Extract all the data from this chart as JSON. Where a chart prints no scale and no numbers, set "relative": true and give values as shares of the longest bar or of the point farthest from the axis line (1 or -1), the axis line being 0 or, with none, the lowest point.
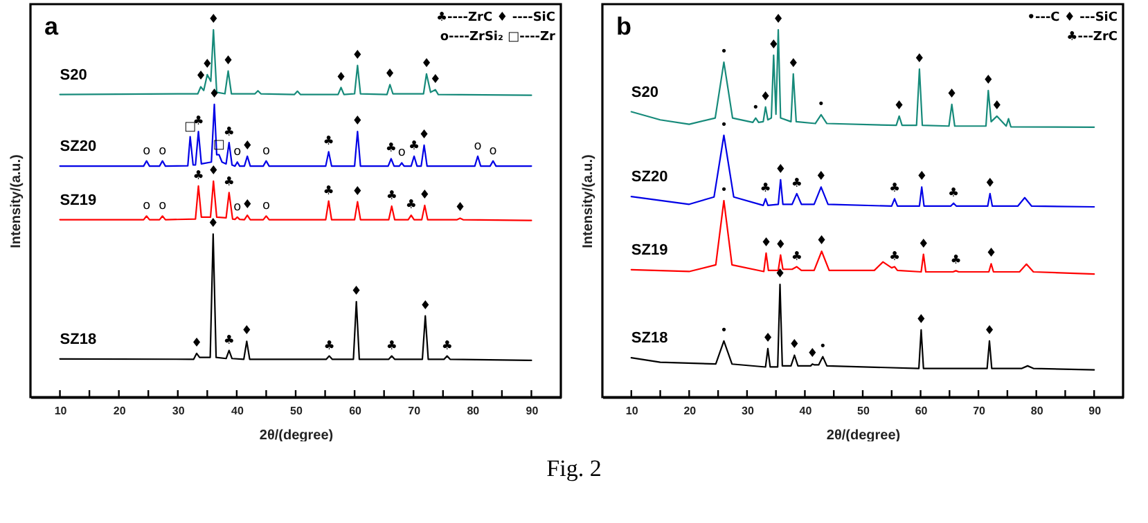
{
  "chart_data": [
    {
      "type": "line",
      "title": "a",
      "xlabel": "2θ/(degree)",
      "ylabel": "Intensity/(a.u.)",
      "relative": true,
      "xlim": [
        5,
        95
      ],
      "xticks": [
        10,
        {
          "value": 15,
          "label": null
        },
        20,
        {
          "value": 25,
          "label": null
        },
        30,
        {
          "value": 35,
          "label": null
        },
        40,
        {
          "value": 45,
          "label": null
        },
        50,
        {
          "value": 55,
          "label": null
        },
        60,
        {
          "value": 65,
          "label": null
        },
        70,
        {
          "value": 75,
          "label": null
        },
        80,
        {
          "value": 85,
          "label": null
        },
        90
      ],
      "series": [
        {
          "name": "S20",
          "color": "#168a7a",
          "x": [
            10,
            33.4,
            33.9,
            34.4,
            35.0,
            35.6,
            36.05,
            36.6,
            38.0,
            38.55,
            39.1,
            43.1,
            43.6,
            44.1,
            49.8,
            50.3,
            50.8,
            57.2,
            57.7,
            58.2,
            60.0,
            60.5,
            61.0,
            65.5,
            66.0,
            66.5,
            71.7,
            72.2,
            72.9,
            73.7,
            74.2,
            90
          ],
          "values": [
            0.824,
            0.826,
            0.845,
            0.835,
            0.878,
            0.86,
            1.0,
            0.83,
            0.826,
            0.888,
            0.826,
            0.826,
            0.834,
            0.826,
            0.824,
            0.833,
            0.824,
            0.824,
            0.843,
            0.824,
            0.826,
            0.903,
            0.826,
            0.824,
            0.851,
            0.826,
            0.826,
            0.88,
            0.83,
            0.837,
            0.824,
            0.822
          ]
        },
        {
          "name": "SZ20",
          "color": "#0000e6",
          "x": [
            10,
            24.2,
            24.7,
            25.2,
            26.9,
            27.4,
            27.9,
            31.7,
            32.1,
            32.6,
            33.0,
            33.5,
            34.0,
            35.7,
            36.2,
            36.6,
            37.0,
            37.5,
            38.2,
            38.7,
            39.2,
            39.7,
            40.1,
            40.5,
            41.3,
            41.8,
            42.3,
            44.5,
            45.0,
            45.5,
            55.1,
            55.6,
            56.1,
            60.0,
            60.5,
            61.0,
            65.7,
            66.2,
            66.7,
            67.6,
            68.0,
            68.4,
            69.6,
            70.1,
            70.6,
            71.3,
            71.8,
            72.3,
            80.4,
            80.9,
            81.4,
            83.0,
            83.5,
            84.0,
            90
          ],
          "values": [
            0.629,
            0.629,
            0.643,
            0.629,
            0.629,
            0.643,
            0.629,
            0.63,
            0.709,
            0.632,
            0.632,
            0.723,
            0.635,
            0.64,
            0.797,
            0.66,
            0.66,
            0.64,
            0.635,
            0.693,
            0.632,
            0.629,
            0.64,
            0.629,
            0.629,
            0.656,
            0.629,
            0.629,
            0.643,
            0.629,
            0.629,
            0.668,
            0.629,
            0.629,
            0.723,
            0.629,
            0.629,
            0.649,
            0.629,
            0.629,
            0.638,
            0.629,
            0.629,
            0.656,
            0.629,
            0.629,
            0.686,
            0.629,
            0.629,
            0.656,
            0.629,
            0.629,
            0.643,
            0.629,
            0.629
          ]
        },
        {
          "name": "SZ19",
          "color": "#ff0000",
          "x": [
            10,
            24.2,
            24.7,
            25.2,
            26.9,
            27.4,
            27.9,
            33.0,
            33.5,
            34.0,
            35.55,
            36.05,
            36.6,
            38.2,
            38.7,
            39.3,
            39.7,
            40.1,
            40.5,
            41.3,
            41.8,
            42.3,
            44.5,
            45.0,
            45.5,
            55.1,
            55.6,
            56.1,
            60.0,
            60.5,
            61.0,
            65.8,
            66.3,
            66.8,
            69.1,
            69.6,
            70.1,
            71.4,
            71.9,
            72.4,
            77.4,
            77.9,
            78.4,
            90
          ],
          "values": [
            0.483,
            0.483,
            0.493,
            0.483,
            0.483,
            0.493,
            0.483,
            0.485,
            0.575,
            0.49,
            0.49,
            0.588,
            0.49,
            0.488,
            0.557,
            0.485,
            0.484,
            0.49,
            0.484,
            0.483,
            0.495,
            0.483,
            0.483,
            0.493,
            0.483,
            0.483,
            0.534,
            0.483,
            0.483,
            0.532,
            0.483,
            0.483,
            0.52,
            0.483,
            0.483,
            0.495,
            0.483,
            0.483,
            0.522,
            0.483,
            0.483,
            0.487,
            0.483,
            0.481
          ]
        },
        {
          "name": "SZ18",
          "color": "#000000",
          "x": [
            10,
            32.7,
            33.2,
            33.7,
            35.5,
            36.0,
            36.5,
            38.2,
            38.7,
            39.2,
            41.2,
            41.7,
            42.2,
            55.2,
            55.7,
            56.2,
            59.8,
            60.3,
            60.8,
            65.8,
            66.3,
            66.8,
            71.5,
            72.0,
            72.5,
            75.2,
            75.7,
            76.2,
            90
          ],
          "values": [
            0.104,
            0.103,
            0.119,
            0.108,
            0.108,
            0.444,
            0.108,
            0.105,
            0.127,
            0.105,
            0.103,
            0.152,
            0.103,
            0.103,
            0.112,
            0.103,
            0.103,
            0.26,
            0.103,
            0.103,
            0.112,
            0.103,
            0.103,
            0.221,
            0.103,
            0.103,
            0.112,
            0.103,
            0.1
          ]
        }
      ],
      "annotations": [
        "♣----ZrC ♦ ----SiC",
        "o----ZrSi₂ □----Zr",
        {
          "text": "♦",
          "x": 33.9,
          "y": 0.845
        },
        {
          "text": "♦",
          "x": 35.0,
          "y": 0.878
        },
        {
          "text": "♦",
          "x": 36.05,
          "y": 1.0
        },
        {
          "text": "♦",
          "x": 38.55,
          "y": 0.888
        },
        {
          "text": "♦",
          "x": 57.7,
          "y": 0.843
        },
        {
          "text": "♦",
          "x": 60.5,
          "y": 0.903
        },
        {
          "text": "♦",
          "x": 66.0,
          "y": 0.851
        },
        {
          "text": "♦",
          "x": 72.2,
          "y": 0.88
        },
        {
          "text": "♦",
          "x": 73.7,
          "y": 0.837
        },
        {
          "text": "o",
          "x": 24.7,
          "y": 0.643
        },
        {
          "text": "o",
          "x": 27.4,
          "y": 0.643
        },
        {
          "text": "□",
          "x": 32.1,
          "y": 0.709
        },
        {
          "text": "♣",
          "x": 33.5,
          "y": 0.723
        },
        {
          "text": "♦",
          "x": 36.2,
          "y": 0.797
        },
        {
          "text": "□",
          "x": 37.0,
          "y": 0.66
        },
        {
          "text": "♣",
          "x": 38.7,
          "y": 0.693
        },
        {
          "text": "o",
          "x": 40.1,
          "y": 0.64
        },
        {
          "text": "♦",
          "x": 41.8,
          "y": 0.656
        },
        {
          "text": "o",
          "x": 45.0,
          "y": 0.643
        },
        {
          "text": "♣",
          "x": 55.6,
          "y": 0.668
        },
        {
          "text": "♦",
          "x": 60.5,
          "y": 0.723
        },
        {
          "text": "♣",
          "x": 66.2,
          "y": 0.649
        },
        {
          "text": "o",
          "x": 68.0,
          "y": 0.638
        },
        {
          "text": "♣",
          "x": 70.1,
          "y": 0.656
        },
        {
          "text": "♦",
          "x": 71.8,
          "y": 0.686
        },
        {
          "text": "o",
          "x": 80.9,
          "y": 0.656
        },
        {
          "text": "o",
          "x": 83.5,
          "y": 0.643
        },
        {
          "text": "o",
          "x": 24.7,
          "y": 0.493
        },
        {
          "text": "o",
          "x": 27.4,
          "y": 0.493
        },
        {
          "text": "♣",
          "x": 33.5,
          "y": 0.575
        },
        {
          "text": "♦",
          "x": 36.05,
          "y": 0.588
        },
        {
          "text": "♣",
          "x": 38.7,
          "y": 0.557
        },
        {
          "text": "o",
          "x": 40.1,
          "y": 0.49
        },
        {
          "text": "♦",
          "x": 41.8,
          "y": 0.495
        },
        {
          "text": "o",
          "x": 45.0,
          "y": 0.493
        },
        {
          "text": "♣",
          "x": 55.6,
          "y": 0.534
        },
        {
          "text": "♦",
          "x": 60.5,
          "y": 0.532
        },
        {
          "text": "♣",
          "x": 66.3,
          "y": 0.52
        },
        {
          "text": "♣",
          "x": 69.6,
          "y": 0.495
        },
        {
          "text": "♦",
          "x": 71.9,
          "y": 0.522
        },
        {
          "text": "♦",
          "x": 77.9,
          "y": 0.487
        },
        {
          "text": "♦",
          "x": 33.2,
          "y": 0.119
        },
        {
          "text": "♦",
          "x": 36.0,
          "y": 0.444
        },
        {
          "text": "♣",
          "x": 38.7,
          "y": 0.127
        },
        {
          "text": "♦",
          "x": 41.7,
          "y": 0.152
        },
        {
          "text": "♣",
          "x": 55.7,
          "y": 0.112
        },
        {
          "text": "♦",
          "x": 60.3,
          "y": 0.26
        },
        {
          "text": "♣",
          "x": 66.3,
          "y": 0.112
        },
        {
          "text": "♦",
          "x": 72.0,
          "y": 0.221
        },
        {
          "text": "♣",
          "x": 75.7,
          "y": 0.112
        }
      ]
    },
    {
      "type": "line",
      "title": "b",
      "xlabel": "2θ/(degree)",
      "ylabel": "Intensity/(a.u.)",
      "relative": true,
      "xlim": [
        5,
        95
      ],
      "xticks": [
        10,
        {
          "value": 15,
          "label": null
        },
        20,
        {
          "value": 25,
          "label": null
        },
        30,
        {
          "value": 35,
          "label": null
        },
        40,
        {
          "value": 45,
          "label": null
        },
        50,
        {
          "value": 55,
          "label": null
        },
        60,
        {
          "value": 65,
          "label": null
        },
        70,
        {
          "value": 75,
          "label": null
        },
        80,
        {
          "value": 85,
          "label": null
        },
        90
      ],
      "series": [
        {
          "name": "S20",
          "color": "#168a7a",
          "x": [
            10,
            15,
            20,
            24.5,
            26.0,
            27.5,
            31.0,
            31.5,
            32.0,
            32.8,
            33.2,
            33.6,
            34.2,
            34.6,
            35.0,
            35.4,
            35.8,
            37.6,
            38.0,
            38.5,
            41.8,
            42.8,
            43.8,
            55.8,
            56.3,
            56.8,
            59.3,
            59.8,
            60.3,
            64.9,
            65.4,
            65.9,
            71.3,
            71.7,
            72.2,
            73.2,
            74.8,
            75.2,
            75.6,
            90
          ],
          "values": [
            0.777,
            0.755,
            0.743,
            0.76,
            0.912,
            0.76,
            0.748,
            0.76,
            0.748,
            0.75,
            0.79,
            0.755,
            0.76,
            0.931,
            0.77,
            1.0,
            0.76,
            0.75,
            0.88,
            0.75,
            0.745,
            0.769,
            0.745,
            0.74,
            0.765,
            0.74,
            0.74,
            0.893,
            0.74,
            0.738,
            0.797,
            0.738,
            0.738,
            0.835,
            0.75,
            0.765,
            0.738,
            0.758,
            0.736,
            0.735
          ]
        },
        {
          "name": "SZ20",
          "color": "#0000e6",
          "x": [
            10,
            20,
            24.3,
            26.0,
            27.7,
            32.8,
            33.2,
            33.6,
            35.4,
            35.8,
            36.2,
            37.8,
            38.6,
            39.4,
            41.6,
            42.8,
            44.0,
            55.0,
            55.5,
            56.0,
            59.8,
            60.2,
            60.6,
            65.2,
            65.7,
            66.2,
            71.6,
            72.0,
            72.4,
            76.8,
            78.0,
            79.2,
            90
          ],
          "values": [
            0.546,
            0.525,
            0.545,
            0.713,
            0.545,
            0.522,
            0.54,
            0.522,
            0.525,
            0.592,
            0.525,
            0.525,
            0.554,
            0.525,
            0.525,
            0.572,
            0.525,
            0.52,
            0.54,
            0.52,
            0.52,
            0.572,
            0.52,
            0.52,
            0.528,
            0.52,
            0.52,
            0.554,
            0.52,
            0.52,
            0.543,
            0.52,
            0.518
          ]
        },
        {
          "name": "SZ19",
          "color": "#ff0000",
          "x": [
            10,
            20,
            24.6,
            26.0,
            27.4,
            32.9,
            33.3,
            33.7,
            35.4,
            35.8,
            36.2,
            37.8,
            38.6,
            39.4,
            41.6,
            42.9,
            44.2,
            52.0,
            53.5,
            55.0,
            55.5,
            56.0,
            60.1,
            60.5,
            60.9,
            65.6,
            66.1,
            66.6,
            71.8,
            72.2,
            72.6,
            77.1,
            78.3,
            79.5,
            90
          ],
          "values": [
            0.347,
            0.342,
            0.36,
            0.535,
            0.36,
            0.342,
            0.392,
            0.345,
            0.345,
            0.387,
            0.348,
            0.348,
            0.355,
            0.345,
            0.345,
            0.397,
            0.345,
            0.345,
            0.368,
            0.352,
            0.355,
            0.345,
            0.341,
            0.389,
            0.341,
            0.341,
            0.344,
            0.341,
            0.341,
            0.363,
            0.341,
            0.341,
            0.362,
            0.341,
            0.335
          ]
        },
        {
          "name": "SZ18",
          "color": "#000000",
          "x": [
            10,
            15,
            24.6,
            26.0,
            27.4,
            33.2,
            33.6,
            34.0,
            35.3,
            35.7,
            36.1,
            37.6,
            38.2,
            38.8,
            41.0,
            41.3,
            41.6,
            42.4,
            43.1,
            43.8,
            59.7,
            60.1,
            60.5,
            71.5,
            71.9,
            72.3,
            77.5,
            78.5,
            79.5,
            90
          ],
          "values": [
            0.107,
            0.095,
            0.09,
            0.153,
            0.09,
            0.082,
            0.132,
            0.082,
            0.082,
            0.307,
            0.085,
            0.085,
            0.114,
            0.085,
            0.085,
            0.09,
            0.088,
            0.088,
            0.11,
            0.085,
            0.078,
            0.183,
            0.078,
            0.078,
            0.153,
            0.078,
            0.078,
            0.085,
            0.078,
            0.074
          ]
        }
      ],
      "annotations": [
        "•---C   ♦ ---SiC",
        "♣---ZrC",
        {
          "text": "•",
          "x": 26.0,
          "y": 0.912
        },
        {
          "text": "•",
          "x": 31.5,
          "y": 0.76
        },
        {
          "text": "♦",
          "x": 33.2,
          "y": 0.79
        },
        {
          "text": "♦",
          "x": 34.6,
          "y": 0.931
        },
        {
          "text": "♦",
          "x": 35.4,
          "y": 1.0
        },
        {
          "text": "♦",
          "x": 38.0,
          "y": 0.88
        },
        {
          "text": "•",
          "x": 42.8,
          "y": 0.769
        },
        {
          "text": "♦",
          "x": 56.3,
          "y": 0.765
        },
        {
          "text": "♦",
          "x": 59.8,
          "y": 0.893
        },
        {
          "text": "♦",
          "x": 65.4,
          "y": 0.797
        },
        {
          "text": "♦",
          "x": 71.7,
          "y": 0.835
        },
        {
          "text": "♦",
          "x": 73.2,
          "y": 0.765
        },
        {
          "text": "•",
          "x": 26.0,
          "y": 0.713
        },
        {
          "text": "♣",
          "x": 33.2,
          "y": 0.54
        },
        {
          "text": "♦",
          "x": 35.8,
          "y": 0.592
        },
        {
          "text": "♣",
          "x": 38.6,
          "y": 0.554
        },
        {
          "text": "♦",
          "x": 42.8,
          "y": 0.572
        },
        {
          "text": "♣",
          "x": 55.5,
          "y": 0.54
        },
        {
          "text": "♦",
          "x": 60.2,
          "y": 0.572
        },
        {
          "text": "♣",
          "x": 65.7,
          "y": 0.528
        },
        {
          "text": "♦",
          "x": 72.0,
          "y": 0.554
        },
        {
          "text": "•",
          "x": 26.0,
          "y": 0.535
        },
        {
          "text": "♦",
          "x": 33.3,
          "y": 0.392
        },
        {
          "text": "♦",
          "x": 35.8,
          "y": 0.387
        },
        {
          "text": "♣",
          "x": 38.6,
          "y": 0.355
        },
        {
          "text": "♦",
          "x": 42.9,
          "y": 0.397
        },
        {
          "text": "♣",
          "x": 55.5,
          "y": 0.355
        },
        {
          "text": "♦",
          "x": 60.5,
          "y": 0.389
        },
        {
          "text": "♣",
          "x": 66.1,
          "y": 0.344
        },
        {
          "text": "♦",
          "x": 72.2,
          "y": 0.363
        },
        {
          "text": "•",
          "x": 26.0,
          "y": 0.153
        },
        {
          "text": "♦",
          "x": 33.6,
          "y": 0.132
        },
        {
          "text": "♦",
          "x": 35.7,
          "y": 0.307
        },
        {
          "text": "♦",
          "x": 38.2,
          "y": 0.114
        },
        {
          "text": "♦",
          "x": 41.3,
          "y": 0.09
        },
        {
          "text": "•",
          "x": 43.1,
          "y": 0.11
        },
        {
          "text": "♦",
          "x": 60.1,
          "y": 0.183
        },
        {
          "text": "♦",
          "x": 71.9,
          "y": 0.153
        }
      ]
    },
    {
      "type": "other",
      "annotations": [
        "Fig. 2"
      ]
    }
  ]
}
